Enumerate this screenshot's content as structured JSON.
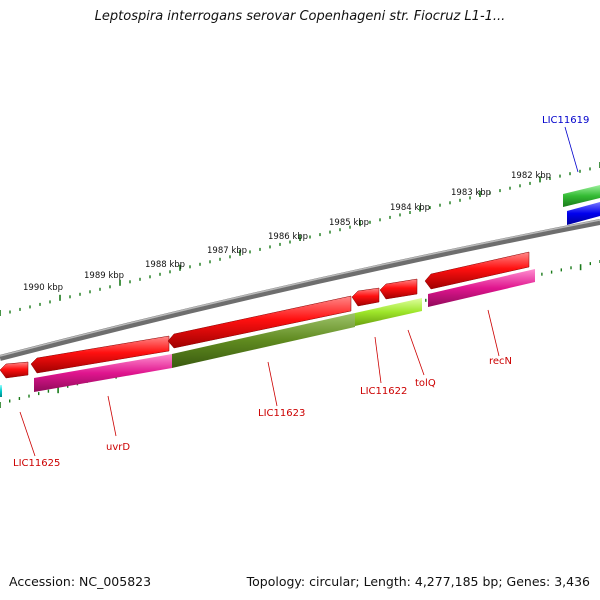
{
  "title": "Leptospira interrogans serovar Copenhageni str. Fiocruz L1-1...",
  "footer": {
    "accession": "Accession: NC_005823",
    "summary": "Topology: circular; Length: 4,277,185 bp; Genes: 3,436"
  },
  "ruler_ticks": [
    "1990 kbp",
    "1989 kbp",
    "1988 kbp",
    "1987 kbp",
    "1986 kbp",
    "1985 kbp",
    "1984 kbp",
    "1983 kbp",
    "1982 kbp"
  ],
  "gene_labels": [
    {
      "text": "LIC11619",
      "color": "#0000cc"
    },
    {
      "text": "LIC11625",
      "color": "#cc0000"
    },
    {
      "text": "uvrD",
      "color": "#cc0000"
    },
    {
      "text": "LIC11623",
      "color": "#cc0000"
    },
    {
      "text": "LIC11622",
      "color": "#cc0000"
    },
    {
      "text": "tolQ",
      "color": "#cc0000"
    },
    {
      "text": "recN",
      "color": "#cc0000"
    }
  ],
  "colors": {
    "backbone": "#8a8a8a",
    "forward_gene": "#ee0000",
    "cds_pink": "#e0158e",
    "cds_olive": "#5f8a1f",
    "cds_lime": "#9ee62a",
    "cds_green": "#33bb33",
    "cds_blue": "#0000ee",
    "cds_cyan": "#00cccc",
    "tick_green": "#1a7a1a"
  }
}
